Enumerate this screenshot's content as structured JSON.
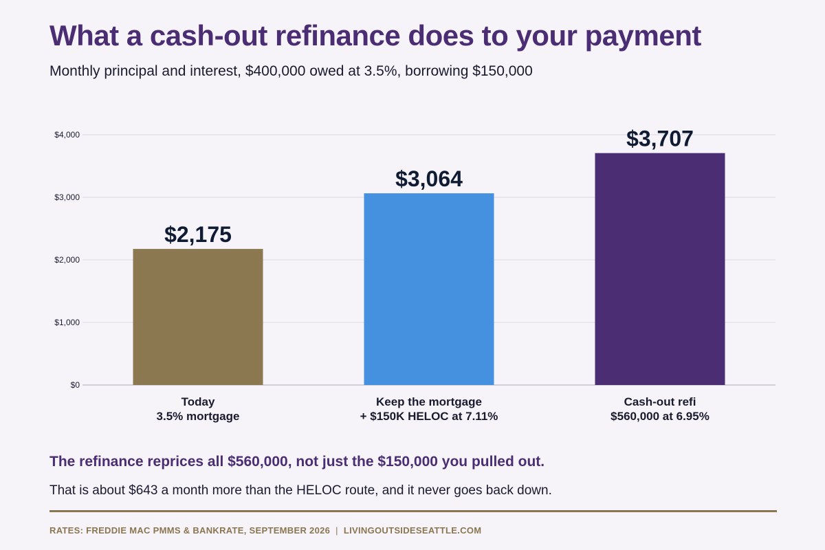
{
  "header": {
    "title": "What a cash-out refinance does to your payment",
    "subtitle": "Monthly principal and interest, $400,000 owed at 3.5%, borrowing $150,000"
  },
  "chart_data": {
    "type": "bar",
    "categories": [
      [
        "Today",
        "3.5% mortgage"
      ],
      [
        "Keep the mortgage",
        "+ $150K HELOC at 7.11%"
      ],
      [
        "Cash-out refi",
        "$560,000 at 6.95%"
      ]
    ],
    "values": [
      2175,
      3064,
      3707
    ],
    "value_labels": [
      "$2,175",
      "$3,064",
      "$3,707"
    ],
    "colors": [
      "#8b7750",
      "#4690e0",
      "#4b2d73"
    ],
    "ylim": [
      0,
      4000
    ],
    "yticks": [
      0,
      1000,
      2000,
      3000,
      4000
    ],
    "ytick_labels": [
      "$0",
      "$1,000",
      "$2,000",
      "$3,000",
      "$4,000"
    ],
    "grid": true,
    "xlabel": "",
    "ylabel": ""
  },
  "takeaway": "The refinance reprices all $560,000, not just the $150,000 you pulled out.",
  "note": "That is about $643 a month more than the HELOC route, and it never goes back down.",
  "footer": {
    "source": "RATES: FREDDIE MAC PMMS & BANKRATE, SEPTEMBER 2026",
    "separator": "|",
    "site": "LIVINGOUTSIDESEATTLE.COM"
  }
}
